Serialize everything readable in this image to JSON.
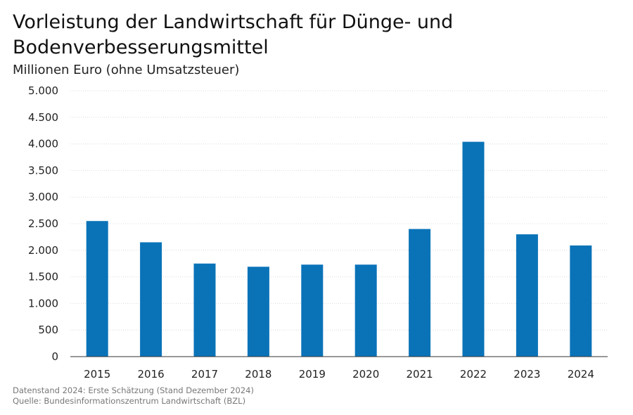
{
  "chart_data": {
    "type": "bar",
    "title": "Vorleistung der Landwirtschaft für Dünge- und Bodenverbesserungsmittel",
    "subtitle": "Millionen Euro (ohne Umsatzsteuer)",
    "xlabel": "",
    "ylabel": "Millionen Euro (ohne Umsatzsteuer)",
    "categories": [
      "2015",
      "2016",
      "2017",
      "2018",
      "2019",
      "2020",
      "2021",
      "2022",
      "2023",
      "2024"
    ],
    "values": [
      2550,
      2150,
      1750,
      1690,
      1730,
      1730,
      2400,
      4040,
      2300,
      2090
    ],
    "ylim": [
      0,
      5000
    ],
    "yticks": [
      0,
      500,
      1000,
      1500,
      2000,
      2500,
      3000,
      3500,
      4000,
      4500,
      5000
    ],
    "ytick_labels": [
      "0",
      "500",
      "1.000",
      "1.500",
      "2.000",
      "2.500",
      "3.000",
      "3.500",
      "4.000",
      "4.500",
      "5.000"
    ],
    "grid": true,
    "bar_color": "#0a73b8"
  },
  "footer": {
    "line1": "Datenstand 2024: Erste Schätzung (Stand Dezember 2024)",
    "line2": "Quelle: Bundesinformationszentrum Landwirtschaft (BZL)"
  }
}
